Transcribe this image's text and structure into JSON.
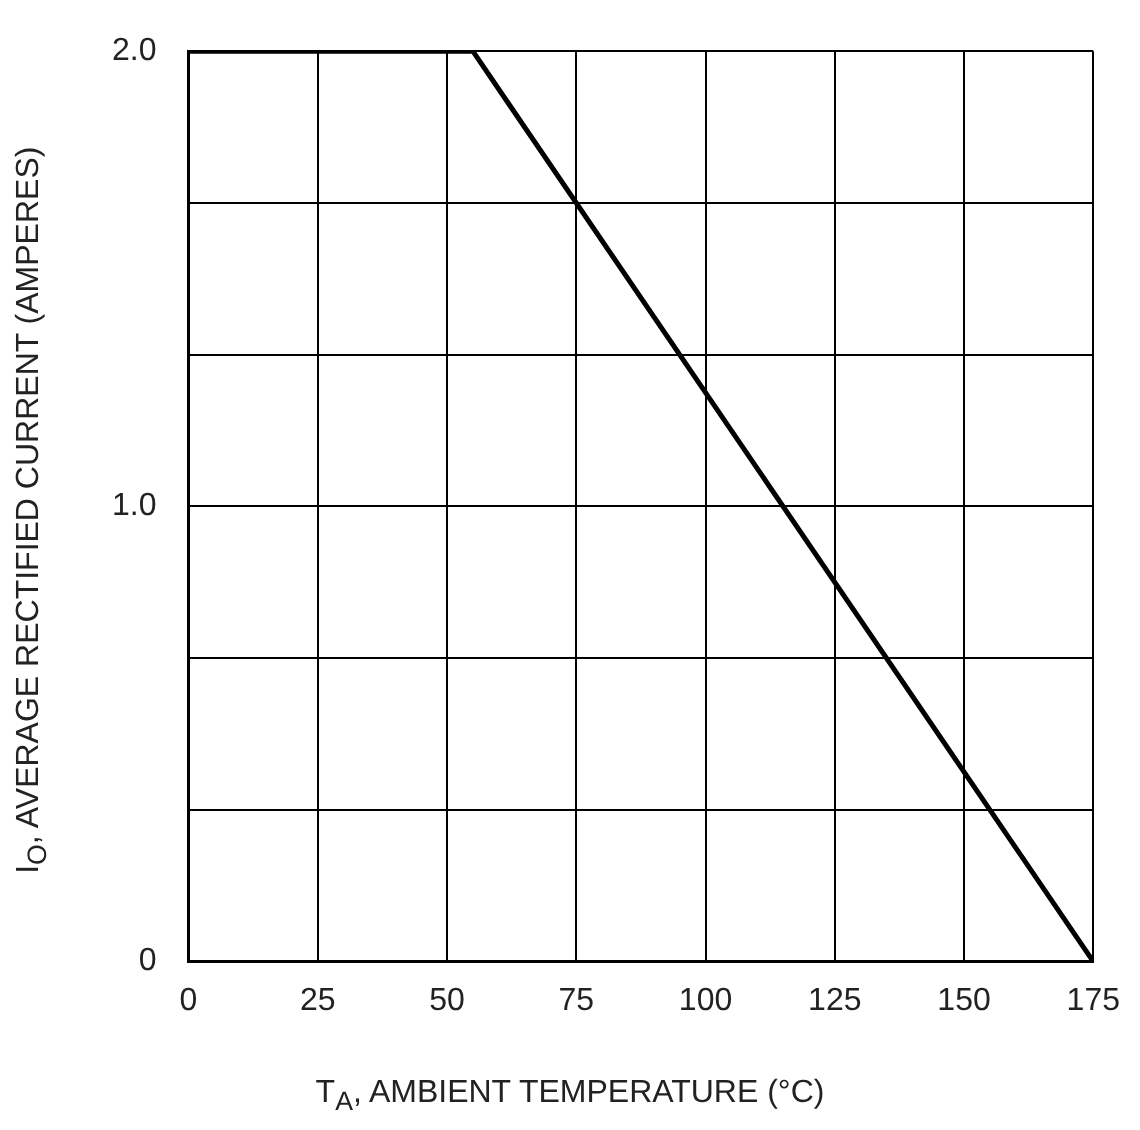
{
  "chart_data": {
    "type": "line",
    "xlabel": "T$_{A}$, AMBIENT TEMPERATURE (°C)",
    "ylabel": "I$_{O}$, AVERAGE RECTIFIED CURRENT (AMPERES)",
    "x": [
      0,
      55,
      175
    ],
    "series": [
      {
        "color": "#000000",
        "values": [
          2,
          2,
          0
        ]
      }
    ],
    "xlim": [
      0,
      175
    ],
    "xticks": [
      0,
      25,
      50,
      75,
      100,
      125,
      150,
      175
    ],
    "ylim": [
      0,
      2
    ],
    "yticks": [
      {
        "value": 0,
        "label": "0"
      },
      {
        "value": 0.333,
        "label": null
      },
      {
        "value": 0.667,
        "label": null
      },
      {
        "value": 1,
        "label": "1.0"
      },
      {
        "value": 1.333,
        "label": null
      },
      {
        "value": 1.667,
        "label": null
      },
      {
        "value": 2,
        "label": "2.0"
      }
    ],
    "grid": true
  }
}
